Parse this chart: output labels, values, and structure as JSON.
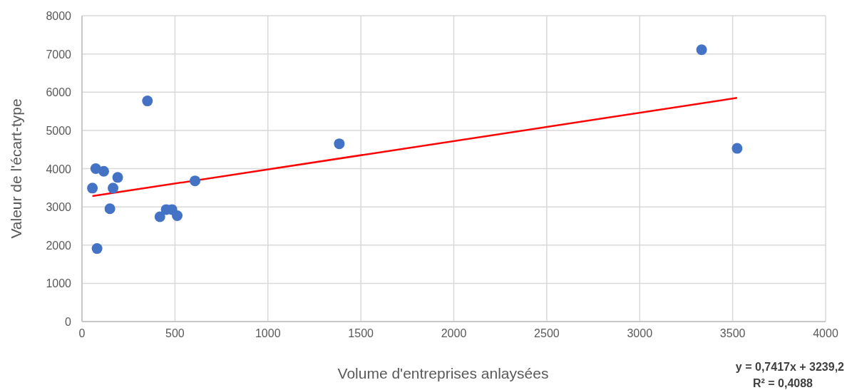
{
  "chart_data": {
    "type": "scatter",
    "xlabel": "Volume d'entreprises anlaysées",
    "ylabel": "Valeur de l'écart-type",
    "xlim": [
      0,
      4000
    ],
    "xticks": [
      0,
      500,
      1000,
      1500,
      2000,
      2500,
      3000,
      3500,
      4000
    ],
    "ylim": [
      0,
      8000
    ],
    "yticks": [
      0,
      1000,
      2000,
      3000,
      4000,
      5000,
      6000,
      7000,
      8000
    ],
    "grid": true,
    "series": [
      {
        "color": "#4472c4",
        "marker": "circle",
        "x": [
          56,
          74,
          81,
          117,
          150,
          167,
          192,
          352,
          419,
          453,
          484,
          512,
          608,
          1384,
          3333,
          3524
        ],
        "values": [
          3490,
          4000,
          1910,
          3930,
          2950,
          3490,
          3770,
          5770,
          2740,
          2930,
          2930,
          2770,
          3680,
          4650,
          7110,
          4530
        ]
      },
      {
        "type": "line",
        "color": "#ff0000",
        "x": [
          56,
          3524
        ],
        "values": [
          3280,
          5850
        ]
      }
    ],
    "annotations": [
      "y = 0,7417x + 3239,2",
      "R² = 0,4088"
    ]
  }
}
